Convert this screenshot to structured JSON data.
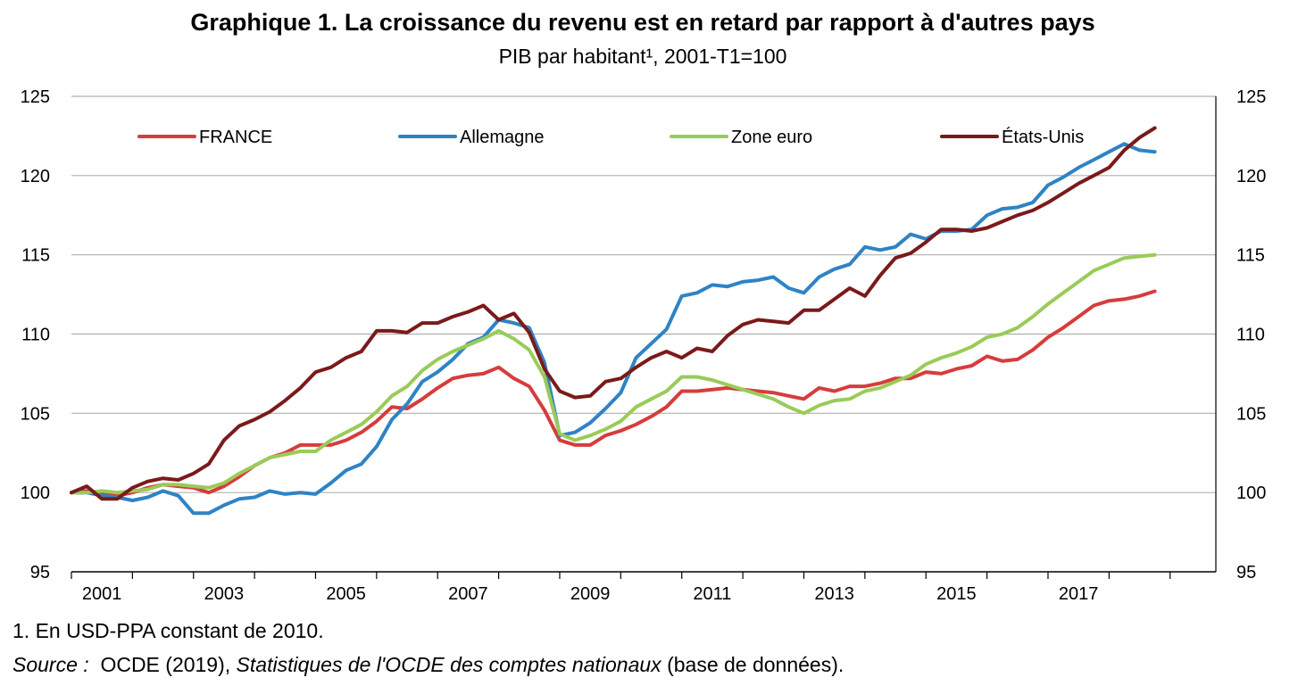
{
  "title": "Graphique 1. La croissance du revenu est en retard par rapport à d'autres pays",
  "subtitle": "PIB par habitant¹, 2001-T1=100",
  "footnote": "1. En USD-PPA constant de 2010.",
  "source": {
    "label": "Source :",
    "before": "OCDE (2019),",
    "italic": "Statistiques de l'OCDE des comptes nationaux",
    "after": "(base de données)."
  },
  "chart_data": {
    "type": "line",
    "ylim": [
      95,
      125
    ],
    "yticks": [
      95,
      100,
      105,
      110,
      115,
      120,
      125
    ],
    "xlim": [
      2001,
      2019.75
    ],
    "xticks": [
      "2001",
      "2003",
      "2005",
      "2007",
      "2009",
      "2011",
      "2013",
      "2015",
      "2017"
    ],
    "dual_y_axis": true,
    "grid": "horizontal",
    "legend_position": "top",
    "x": [
      2001.0,
      2001.25,
      2001.5,
      2001.75,
      2002.0,
      2002.25,
      2002.5,
      2002.75,
      2003.0,
      2003.25,
      2003.5,
      2003.75,
      2004.0,
      2004.25,
      2004.5,
      2004.75,
      2005.0,
      2005.25,
      2005.5,
      2005.75,
      2006.0,
      2006.25,
      2006.5,
      2006.75,
      2007.0,
      2007.25,
      2007.5,
      2007.75,
      2008.0,
      2008.25,
      2008.5,
      2008.75,
      2009.0,
      2009.25,
      2009.5,
      2009.75,
      2010.0,
      2010.25,
      2010.5,
      2010.75,
      2011.0,
      2011.25,
      2011.5,
      2011.75,
      2012.0,
      2012.25,
      2012.5,
      2012.75,
      2013.0,
      2013.25,
      2013.5,
      2013.75,
      2014.0,
      2014.25,
      2014.5,
      2014.75,
      2015.0,
      2015.25,
      2015.5,
      2015.75,
      2016.0,
      2016.25,
      2016.5,
      2016.75,
      2017.0,
      2017.25,
      2017.5,
      2017.75,
      2018.0,
      2018.25,
      2018.5,
      2018.75
    ],
    "series": [
      {
        "name": "FRANCE",
        "color": "#d63c3c",
        "values": [
          100.0,
          100.1,
          100.0,
          99.8,
          100.0,
          100.3,
          100.5,
          100.4,
          100.3,
          100.0,
          100.4,
          101.0,
          101.7,
          102.2,
          102.5,
          103.0,
          103.0,
          103.0,
          103.3,
          103.8,
          104.5,
          105.4,
          105.3,
          105.9,
          106.6,
          107.2,
          107.4,
          107.5,
          107.9,
          107.2,
          106.7,
          105.2,
          103.3,
          103.0,
          103.0,
          103.6,
          103.9,
          104.3,
          104.8,
          105.4,
          106.4,
          106.4,
          106.5,
          106.6,
          106.5,
          106.4,
          106.3,
          106.1,
          105.9,
          106.6,
          106.4,
          106.7,
          106.7,
          106.9,
          107.2,
          107.2,
          107.6,
          107.5,
          107.8,
          108.0,
          108.6,
          108.3,
          108.4,
          109.0,
          109.8,
          110.4,
          111.1,
          111.8,
          112.1,
          112.2,
          112.4,
          112.7
        ]
      },
      {
        "name": "Allemagne",
        "color": "#2f83c5",
        "values": [
          100.0,
          100.0,
          99.8,
          99.7,
          99.5,
          99.7,
          100.1,
          99.8,
          98.7,
          98.7,
          99.2,
          99.6,
          99.7,
          100.1,
          99.9,
          100.0,
          99.9,
          100.6,
          101.4,
          101.8,
          102.9,
          104.6,
          105.6,
          107.0,
          107.6,
          108.4,
          109.4,
          109.8,
          110.9,
          110.7,
          110.4,
          108.2,
          103.6,
          103.8,
          104.4,
          105.3,
          106.3,
          108.5,
          109.4,
          110.3,
          112.4,
          112.6,
          113.1,
          113.0,
          113.3,
          113.4,
          113.6,
          112.9,
          112.6,
          113.6,
          114.1,
          114.4,
          115.5,
          115.3,
          115.5,
          116.3,
          116.0,
          116.5,
          116.5,
          116.6,
          117.5,
          117.9,
          118.0,
          118.3,
          119.4,
          119.9,
          120.5,
          121.0,
          121.5,
          122.0,
          121.6,
          121.5
        ]
      },
      {
        "name": "Zone euro",
        "color": "#9acb59",
        "values": [
          100.0,
          100.0,
          100.1,
          100.0,
          100.1,
          100.2,
          100.5,
          100.5,
          100.4,
          100.3,
          100.6,
          101.2,
          101.7,
          102.2,
          102.4,
          102.6,
          102.6,
          103.3,
          103.8,
          104.3,
          105.1,
          106.1,
          106.7,
          107.7,
          108.4,
          108.9,
          109.3,
          109.7,
          110.2,
          109.7,
          109.0,
          107.3,
          103.7,
          103.3,
          103.6,
          104.0,
          104.5,
          105.4,
          105.9,
          106.4,
          107.3,
          107.3,
          107.1,
          106.8,
          106.5,
          106.2,
          105.9,
          105.4,
          105.0,
          105.5,
          105.8,
          105.9,
          106.4,
          106.6,
          107.0,
          107.4,
          108.1,
          108.5,
          108.8,
          109.2,
          109.8,
          110.0,
          110.4,
          111.1,
          111.9,
          112.6,
          113.3,
          114.0,
          114.4,
          114.8,
          114.9,
          115.0
        ]
      },
      {
        "name": "États-Unis",
        "color": "#7a1a1a",
        "values": [
          100.0,
          100.4,
          99.6,
          99.6,
          100.3,
          100.7,
          100.9,
          100.8,
          101.2,
          101.8,
          103.3,
          104.2,
          104.6,
          105.1,
          105.8,
          106.6,
          107.6,
          107.9,
          108.5,
          108.9,
          110.2,
          110.2,
          110.1,
          110.7,
          110.7,
          111.1,
          111.4,
          111.8,
          110.9,
          111.3,
          110.1,
          107.8,
          106.4,
          106.0,
          106.1,
          107.0,
          107.2,
          107.9,
          108.5,
          108.9,
          108.5,
          109.1,
          108.9,
          109.9,
          110.6,
          110.9,
          110.8,
          110.7,
          111.5,
          111.5,
          112.2,
          112.9,
          112.4,
          113.7,
          114.8,
          115.1,
          115.8,
          116.6,
          116.6,
          116.5,
          116.7,
          117.1,
          117.5,
          117.8,
          118.3,
          118.9,
          119.5,
          120.0,
          120.5,
          121.6,
          122.4,
          123.0
        ]
      }
    ]
  }
}
